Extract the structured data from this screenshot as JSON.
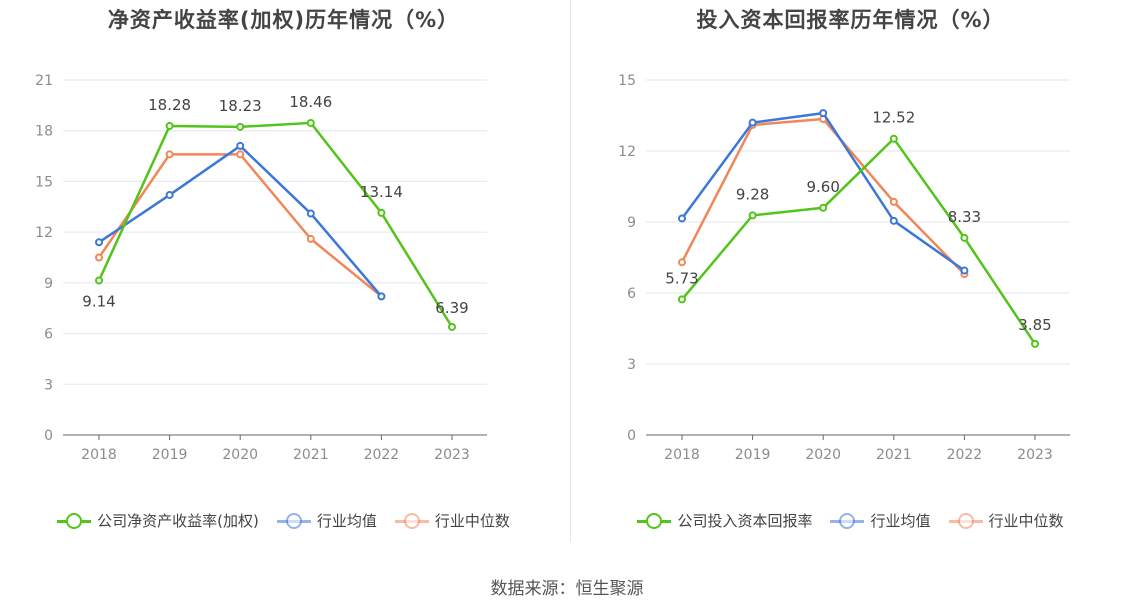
{
  "colors": {
    "company": "#52c41a",
    "avg": "#3c78d8",
    "median": "#f0875a",
    "grid": "#e3e6ee",
    "axis": "#666666",
    "tick": "#8c8c8c"
  },
  "footer": {
    "source": "数据来源：恒生聚源"
  },
  "chart_data": [
    {
      "type": "line",
      "title": "净资产收益率(加权)历年情况（%）",
      "categories": [
        "2018",
        "2019",
        "2020",
        "2021",
        "2022",
        "2023"
      ],
      "ylim": [
        0,
        21
      ],
      "yticks": [
        "0",
        "3",
        "6",
        "9",
        "12",
        "15",
        "18",
        "21"
      ],
      "series": [
        {
          "name": "公司净资产收益率(加权)",
          "key": "company",
          "values": [
            9.14,
            18.28,
            18.23,
            18.46,
            13.14,
            6.39
          ],
          "labels": [
            "9.14",
            "18.28",
            "18.23",
            "18.46",
            "13.14",
            "6.39"
          ]
        },
        {
          "name": "行业均值",
          "key": "avg",
          "values": [
            11.4,
            14.2,
            17.1,
            13.1,
            8.2,
            null
          ]
        },
        {
          "name": "行业中位数",
          "key": "median",
          "values": [
            10.5,
            16.6,
            16.6,
            11.6,
            8.2,
            null
          ]
        }
      ]
    },
    {
      "type": "line",
      "title": "投入资本回报率历年情况（%）",
      "categories": [
        "2018",
        "2019",
        "2020",
        "2021",
        "2022",
        "2023"
      ],
      "ylim": [
        0,
        15
      ],
      "yticks": [
        "0",
        "3",
        "6",
        "9",
        "12",
        "15"
      ],
      "series": [
        {
          "name": "公司投入资本回报率",
          "key": "company",
          "values": [
            5.73,
            9.28,
            9.6,
            12.52,
            8.33,
            3.85
          ],
          "labels": [
            "5.73",
            "9.28",
            "9.60",
            "12.52",
            "8.33",
            "3.85"
          ]
        },
        {
          "name": "行业均值",
          "key": "avg",
          "values": [
            9.15,
            13.2,
            13.6,
            9.05,
            6.95,
            null
          ]
        },
        {
          "name": "行业中位数",
          "key": "median",
          "values": [
            7.3,
            13.1,
            13.35,
            9.85,
            6.8,
            null
          ]
        }
      ]
    }
  ]
}
